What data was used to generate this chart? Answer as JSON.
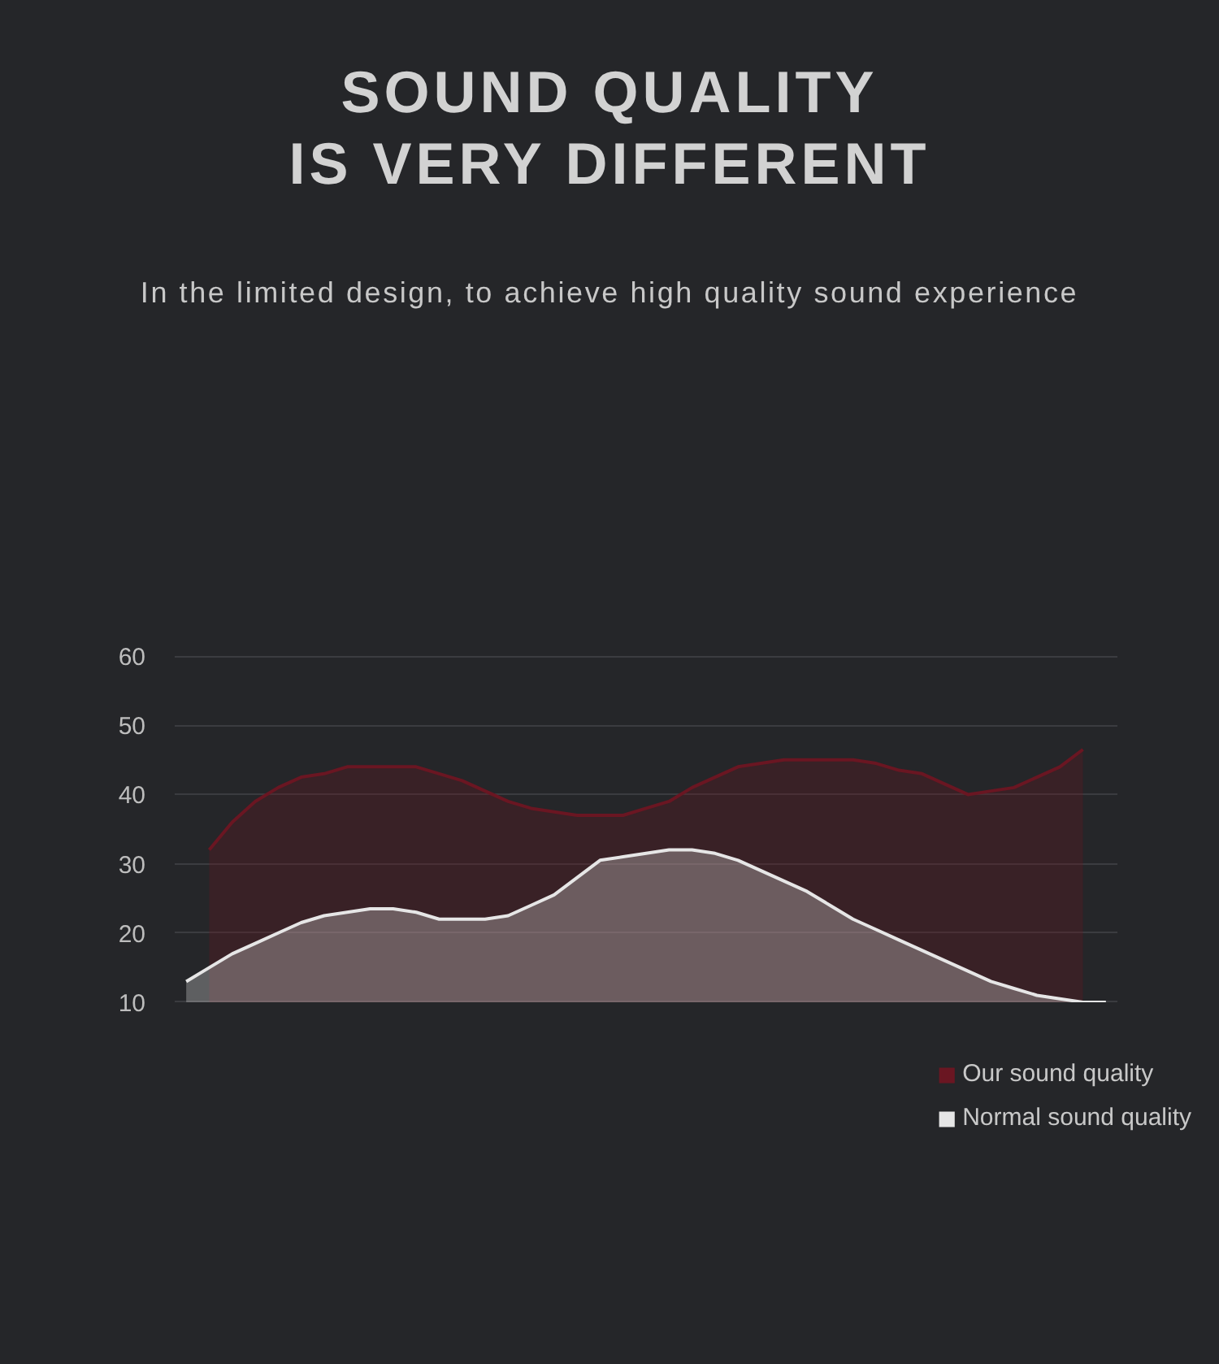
{
  "chart_data": {
    "type": "area",
    "title": "SOUND QUALITY\nIS VERY DIFFERENT",
    "subtitle": "In the limited design, to achieve high quality sound experience",
    "categories": [
      null,
      null,
      null,
      null,
      null,
      null,
      null,
      null,
      null,
      null,
      null,
      null,
      null,
      null,
      null,
      null,
      null,
      null,
      null,
      null,
      null,
      null,
      null,
      null,
      null,
      null,
      null,
      null,
      null,
      null,
      null,
      null,
      null,
      null,
      null,
      null,
      null,
      null,
      null,
      null,
      null
    ],
    "series": [
      {
        "name": "Our sound quality",
        "color": "#6a1622",
        "values": [
          null,
          32,
          36,
          39,
          41,
          42.5,
          43,
          44,
          44,
          44,
          44,
          43,
          42,
          40.5,
          39,
          38,
          37.5,
          37,
          37,
          37,
          38,
          39,
          41,
          42.5,
          44,
          44.5,
          45,
          45,
          45,
          45,
          44.5,
          43.5,
          43,
          41.5,
          40,
          40.5,
          41,
          42.5,
          44,
          46.5,
          null
        ]
      },
      {
        "name": "Normal sound quality",
        "color": "#e6e6e6",
        "values": [
          13,
          15,
          17,
          18.5,
          20,
          21.5,
          22.5,
          23,
          23.5,
          23.5,
          23,
          22,
          22,
          22,
          22.5,
          24,
          25.5,
          28,
          30.5,
          31,
          31.5,
          32,
          32,
          31.5,
          30.5,
          29,
          27.5,
          26,
          24,
          22,
          20.5,
          19,
          17.5,
          16,
          14.5,
          13,
          12,
          11,
          10.5,
          10,
          10
        ]
      }
    ],
    "ylim": [
      10,
      60
    ],
    "yticks": [
      10,
      20,
      30,
      40,
      50,
      60
    ],
    "grid": "y",
    "legend": "bottom right",
    "tick_labels": "y"
  }
}
